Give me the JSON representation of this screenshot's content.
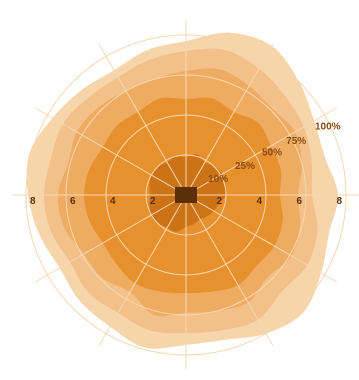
{
  "colors": {
    "background": "#ffffff",
    "band_colors": [
      "#f6d5ab",
      "#f2c088",
      "#eeac62",
      "#e6902e",
      "#cd7317"
    ],
    "grid": "#f6d7b2",
    "center_box": "#5b3008",
    "tick_label": "#5b3008",
    "pct_label": "#8a4a10"
  },
  "chart_data": {
    "type": "polar-area",
    "rmax": 8,
    "radial_ticks": [
      2,
      4,
      6,
      8
    ],
    "radial_tick_labels": [
      "2",
      "4",
      "6",
      "8"
    ],
    "grid_circles": [
      2,
      4,
      6,
      8
    ],
    "spokes": 12,
    "series": [
      {
        "name": "100%",
        "radius": [
          7.7,
          8.4,
          8.6,
          8.0,
          7.4,
          7.2,
          7.6,
          7.4,
          7.8,
          8.3,
          8.0,
          7.5,
          7.5,
          7.9,
          7.6,
          7.5,
          7.3,
          7.6,
          7.9,
          8.1,
          7.7,
          7.4,
          7.2,
          7.5
        ]
      },
      {
        "name": "75%",
        "radius": [
          7.2,
          7.5,
          7.3,
          7.0,
          6.8,
          6.5,
          6.3,
          6.8,
          7.0,
          6.8,
          7.2,
          7.0,
          6.9,
          7.0,
          6.8,
          6.9,
          6.7,
          7.0,
          7.1,
          7.0,
          7.1,
          6.9,
          6.8,
          7.0
        ]
      },
      {
        "name": "50%",
        "radius": [
          6.2,
          6.5,
          6.3,
          6.1,
          6.3,
          6.0,
          5.6,
          5.9,
          6.1,
          5.8,
          6.2,
          6.0,
          5.9,
          6.2,
          5.6,
          5.9,
          5.9,
          6.3,
          6.4,
          6.1,
          6.3,
          6.2,
          6.0,
          6.0
        ]
      },
      {
        "name": "25%",
        "radius": [
          4.8,
          5.0,
          4.8,
          5.1,
          4.9,
          4.9,
          4.7,
          5.0,
          5.1,
          5.0,
          5.2,
          5.0,
          4.9,
          5.0,
          5.1,
          4.9,
          4.8,
          5.0,
          5.1,
          5.0,
          4.8,
          4.9,
          4.8,
          5.0
        ]
      },
      {
        "name": "10%",
        "radius": [
          1.9,
          2.1,
          1.9,
          2.0,
          2.1,
          2.0,
          2.0,
          1.7,
          1.6,
          1.5,
          1.4,
          1.5,
          1.6,
          1.9,
          1.9,
          2.0,
          2.0,
          1.9,
          1.8,
          1.9,
          2.0,
          2.0,
          1.9,
          2.0
        ]
      }
    ],
    "percentile_labels": [
      "10%",
      "25%",
      "50%",
      "75%",
      "100%"
    ]
  }
}
